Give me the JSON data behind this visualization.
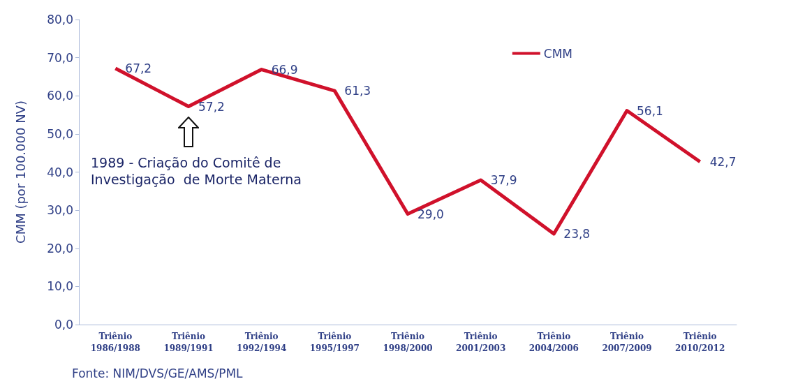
{
  "chart_data": {
    "type": "line",
    "ylabel": "CMM (por 100.000 NV)",
    "categories": [
      "Triênio\n1986/1988",
      "Triênio\n1989/1991",
      "Triênio\n1992/1994",
      "Triênio\n1995/1997",
      "Triênio\n1998/2000",
      "Triênio\n2001/2003",
      "Triênio\n2004/2006",
      "Triênio\n2007/2009",
      "Triênio\n2010/2012"
    ],
    "series": [
      {
        "name": "CMM",
        "color": "#d0112b",
        "values": [
          67.2,
          57.2,
          66.9,
          61.3,
          29.0,
          37.9,
          23.8,
          56.1,
          42.7
        ],
        "value_labels": [
          "67,2",
          "57,2",
          "66,9",
          "61,3",
          "29,0",
          "37,9",
          "23,8",
          "56,1",
          "42,7"
        ]
      }
    ],
    "ylim": [
      0,
      80
    ],
    "yticks": [
      {
        "value": 0,
        "label": "0,0"
      },
      {
        "value": 10,
        "label": "10,0"
      },
      {
        "value": 20,
        "label": "20,0"
      },
      {
        "value": 30,
        "label": "30,0"
      },
      {
        "value": 40,
        "label": "40,0"
      },
      {
        "value": 50,
        "label": "50,0"
      },
      {
        "value": 60,
        "label": "60,0"
      },
      {
        "value": 70,
        "label": "70,0"
      },
      {
        "value": 80,
        "label": "80,0"
      }
    ],
    "grid": false,
    "legend": "top right",
    "marker": "none",
    "line_style": "solid",
    "annotations": [
      "1989 - Criação do Comitê de\nInvestigação  de Morte Materna",
      "Fonte: NIM/DVS/GE/AMS/PML"
    ]
  }
}
